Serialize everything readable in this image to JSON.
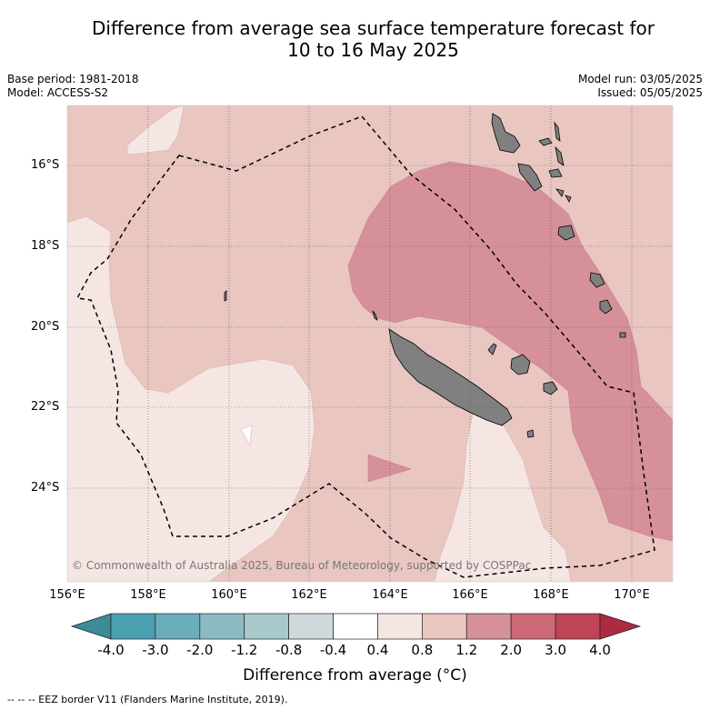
{
  "title_line1": "Difference from average sea surface temperature forecast for",
  "title_line2": "10 to 16 May 2025",
  "meta_left": [
    "Base period: 1981-2018",
    "Model: ACCESS-S2"
  ],
  "meta_right": [
    "Model run: 03/05/2025",
    "Issued: 05/05/2025"
  ],
  "copyright": "© Commonwealth of Australia 2025, Bureau of Meteorology, supported by COSPPac",
  "lat_ticks": [
    "16°S",
    "18°S",
    "20°S",
    "22°S",
    "24°S"
  ],
  "lon_ticks": [
    "156°E",
    "158°E",
    "160°E",
    "162°E",
    "164°E",
    "166°E",
    "168°E",
    "170°E"
  ],
  "colorbar": {
    "ticks": [
      "-4.0",
      "-3.0",
      "-2.0",
      "-1.2",
      "-0.8",
      "-0.4",
      "0.4",
      "0.8",
      "1.2",
      "2.0",
      "3.0",
      "4.0"
    ],
    "colors": [
      "#4aa0b0",
      "#6aaebc",
      "#8cbac4",
      "#a9c8cc",
      "#cfd8da",
      "#ffffff",
      "#f5e6e4",
      "#e9c6c0",
      "#d6909a",
      "#cc6a76",
      "#bf4456"
    ],
    "low_extend_color": "#3d8a99",
    "high_extend_color": "#ad2a40",
    "label": "Difference from average (°C)"
  },
  "map_colors": {
    "band_0_4_0_8": "#f5e6e4",
    "band_0_8_1_2": "#e9c6c0",
    "band_1_2_2_0": "#d6909a",
    "land": "#808080"
  },
  "footer": "--  --  -- EEZ border V11 (Flanders Marine Institute, 2019)."
}
